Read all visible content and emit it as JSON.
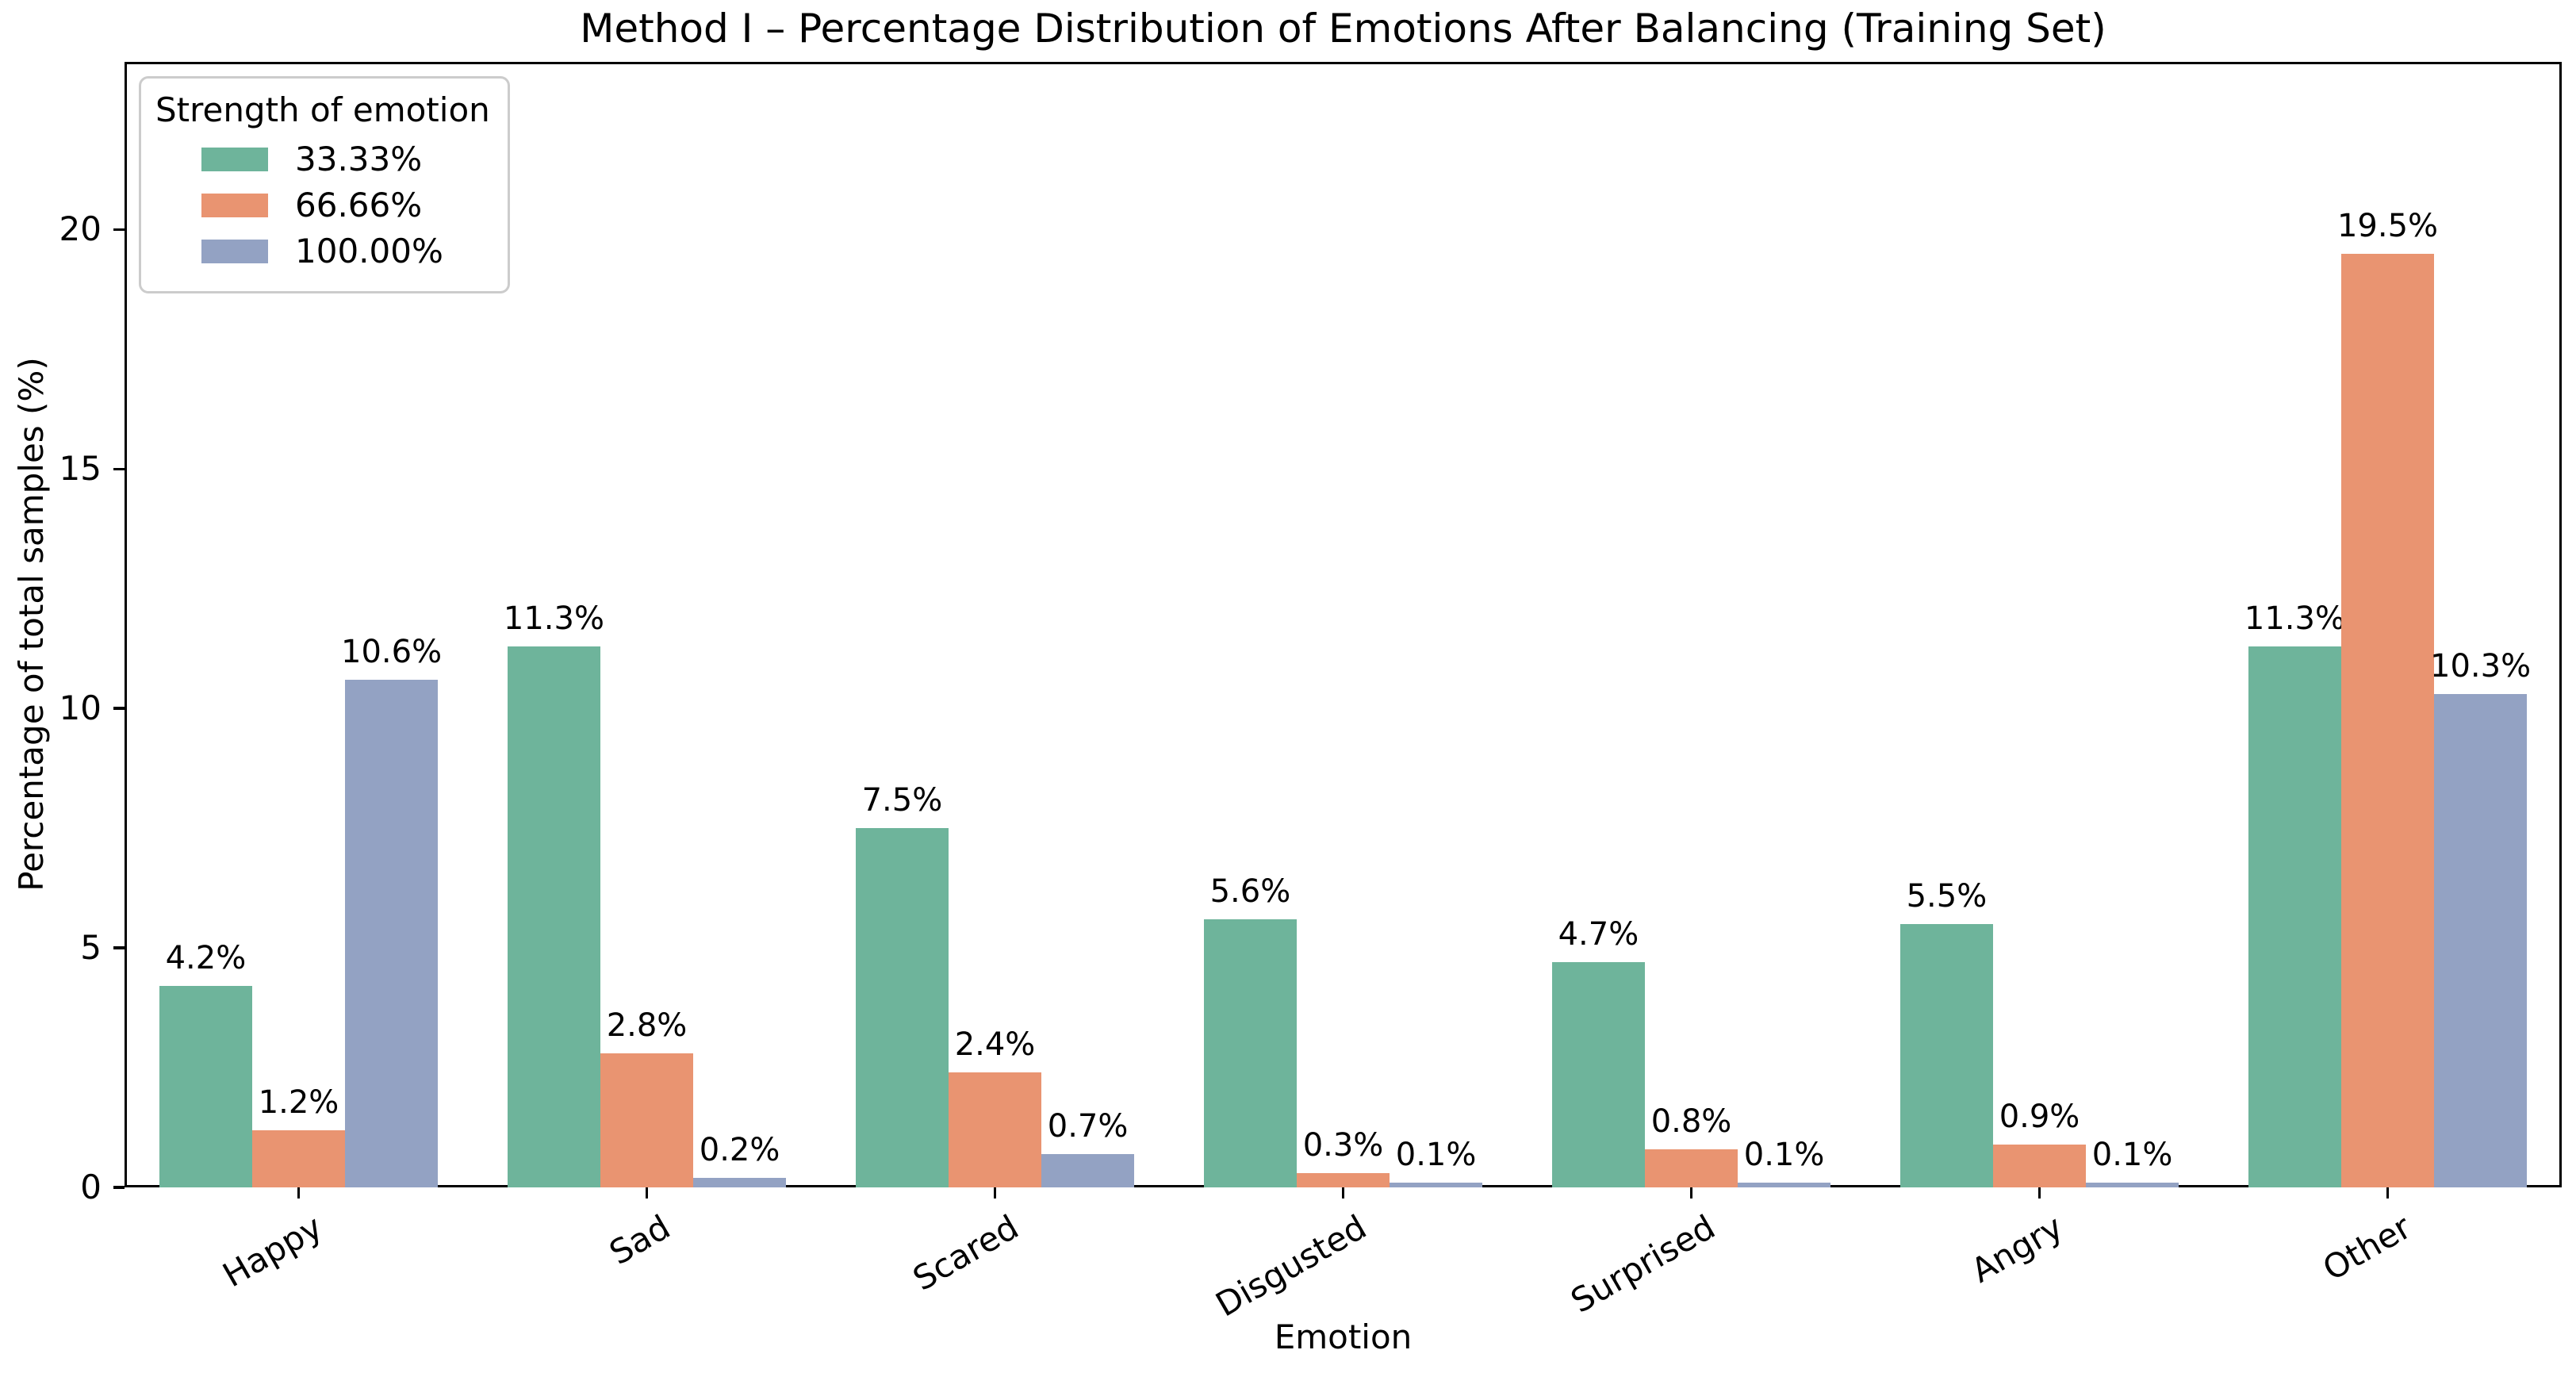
{
  "title": "Method I – Percentage Distribution of Emotions After Balancing (Training Set)",
  "chart_data": {
    "type": "bar",
    "title": "Method I – Percentage Distribution of Emotions After Balancing (Training Set)",
    "xlabel": "Emotion",
    "ylabel": "Percentage of total samples (%)",
    "categories": [
      "Happy",
      "Sad",
      "Scared",
      "Disgusted",
      "Surprised",
      "Angry",
      "Other"
    ],
    "series": [
      {
        "name": "33.33%",
        "color": "#6EB49B",
        "values": [
          4.2,
          11.3,
          7.5,
          5.6,
          4.7,
          5.5,
          11.3
        ]
      },
      {
        "name": "66.66%",
        "color": "#E99471",
        "values": [
          1.2,
          2.8,
          2.4,
          0.3,
          0.8,
          0.9,
          19.5
        ]
      },
      {
        "name": "100.00%",
        "color": "#93A2C3",
        "values": [
          10.6,
          0.2,
          0.7,
          0.1,
          0.1,
          0.1,
          10.3
        ]
      }
    ],
    "bar_labels": [
      [
        "4.2%",
        "11.3%",
        "7.5%",
        "5.6%",
        "4.7%",
        "5.5%",
        "11.3%"
      ],
      [
        "1.2%",
        "2.8%",
        "2.4%",
        "0.3%",
        "0.8%",
        "0.9%",
        "19.5%"
      ],
      [
        "10.6%",
        "0.2%",
        "0.7%",
        "0.1%",
        "0.1%",
        "0.1%",
        "10.3%"
      ]
    ],
    "legend": {
      "title": "Strength of emotion",
      "position": "upper left"
    },
    "ylim": [
      0,
      23.5
    ],
    "yticks": [
      0,
      5,
      10,
      15,
      20
    ],
    "grid": false,
    "axis_color": "#000000",
    "background_color": "#ffffff"
  }
}
